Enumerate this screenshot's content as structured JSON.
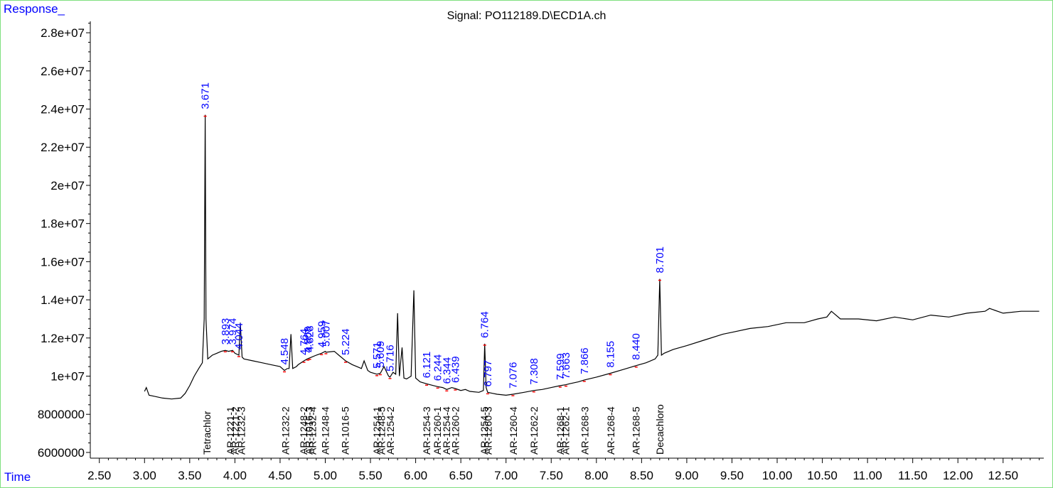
{
  "chart_data": {
    "type": "line",
    "title": "Signal: PO112189.D\\ECD1A.ch",
    "ylabel": "Response_",
    "xlabel": "Time",
    "xlim": [
      2.4,
      12.95
    ],
    "ylim": [
      5700000,
      28600000
    ],
    "xticks": [
      "2.50",
      "3.00",
      "3.50",
      "4.00",
      "4.50",
      "5.00",
      "5.50",
      "6.00",
      "6.50",
      "7.00",
      "7.50",
      "8.00",
      "8.50",
      "9.00",
      "9.50",
      "10.00",
      "10.50",
      "11.00",
      "11.50",
      "12.00",
      "12.50"
    ],
    "yticks": [
      "6000000",
      "8000000",
      "1e+07",
      "1.2e+07",
      "1.4e+07",
      "1.6e+07",
      "1.8e+07",
      "2e+07",
      "2.2e+07",
      "2.4e+07",
      "2.6e+07",
      "2.8e+07"
    ],
    "series": [
      {
        "x": [
          3.0,
          3.02,
          3.05,
          3.1,
          3.2,
          3.3,
          3.4,
          3.45,
          3.5,
          3.55,
          3.6,
          3.64,
          3.66,
          3.671,
          3.68,
          3.7,
          3.75,
          3.8,
          3.85,
          3.893,
          3.93,
          3.974,
          4.0,
          4.044,
          4.06,
          4.08,
          4.1,
          4.2,
          4.3,
          4.4,
          4.5,
          4.548,
          4.58,
          4.6,
          4.62,
          4.64,
          4.68,
          4.7,
          4.764,
          4.8,
          4.85,
          4.9,
          4.959,
          5.0,
          5.007,
          5.1,
          5.15,
          5.2,
          5.224,
          5.3,
          5.35,
          5.4,
          5.43,
          5.47,
          5.5,
          5.571,
          5.609,
          5.65,
          5.7,
          5.716,
          5.75,
          5.78,
          5.8,
          5.82,
          5.85,
          5.87,
          5.9,
          5.95,
          5.98,
          6.0,
          6.05,
          6.121,
          6.2,
          6.244,
          6.3,
          6.344,
          6.4,
          6.439,
          6.5,
          6.55,
          6.6,
          6.7,
          6.75,
          6.764,
          6.78,
          6.797,
          6.85,
          6.9,
          7.0,
          7.076,
          7.2,
          7.308,
          7.4,
          7.5,
          7.599,
          7.663,
          7.7,
          7.8,
          7.866,
          8.0,
          8.155,
          8.3,
          8.44,
          8.55,
          8.65,
          8.68,
          8.701,
          8.72,
          8.75,
          8.85,
          9.0,
          9.2,
          9.4,
          9.5,
          9.7,
          9.9,
          10.1,
          10.3,
          10.45,
          10.55,
          10.6,
          10.7,
          10.9,
          11.1,
          11.3,
          11.5,
          11.7,
          11.9,
          12.1,
          12.3,
          12.35,
          12.5,
          12.7,
          12.9
        ],
        "y": [
          9200000,
          9400000,
          9000000,
          8950000,
          8850000,
          8800000,
          8850000,
          9100000,
          9500000,
          10000000,
          10400000,
          10700000,
          13000000,
          23700000,
          13000000,
          10900000,
          11100000,
          11200000,
          11300000,
          11350000,
          11300000,
          11350000,
          11200000,
          11100000,
          12800000,
          11000000,
          10900000,
          10800000,
          10700000,
          10600000,
          10500000,
          10300000,
          10400000,
          10400000,
          12200000,
          10400000,
          10500000,
          10600000,
          10800000,
          10900000,
          11000000,
          11100000,
          11200000,
          11300000,
          11250000,
          11300000,
          11100000,
          10900000,
          10800000,
          10600000,
          10500000,
          10400000,
          10800000,
          10300000,
          10200000,
          10100000,
          10150000,
          10500000,
          10000000,
          9950000,
          10200000,
          10100000,
          13300000,
          10000000,
          11500000,
          9900000,
          9850000,
          10000000,
          14500000,
          9900000,
          9700000,
          9600000,
          9500000,
          9450000,
          9400000,
          9300000,
          9400000,
          9350000,
          9250000,
          9300000,
          9200000,
          9150000,
          9250000,
          11700000,
          9400000,
          9150000,
          9100000,
          9050000,
          9000000,
          9050000,
          9150000,
          9250000,
          9300000,
          9400000,
          9500000,
          9550000,
          9600000,
          9700000,
          9800000,
          9950000,
          10150000,
          10350000,
          10550000,
          10700000,
          10900000,
          11100000,
          15100000,
          11100000,
          11200000,
          11400000,
          11600000,
          11900000,
          12200000,
          12300000,
          12500000,
          12600000,
          12800000,
          12800000,
          13000000,
          13100000,
          13400000,
          13000000,
          13000000,
          12900000,
          13100000,
          12950000,
          13200000,
          13100000,
          13300000,
          13400000,
          13550000,
          13300000,
          13400000,
          13400000
        ]
      }
    ],
    "peak_labels": [
      "3.671",
      "3.893",
      "3.974",
      "4.044",
      "4.548",
      "4.764",
      "4.808",
      "4.828",
      "4.959",
      "5.007",
      "5.224",
      "5.571",
      "5.609",
      "5.716",
      "6.121",
      "6.244",
      "6.344",
      "6.439",
      "6.764",
      "6.797",
      "7.076",
      "7.308",
      "7.599",
      "7.663",
      "7.866",
      "8.155",
      "8.440",
      "8.701"
    ],
    "compound_labels": [
      "Tetrachlor",
      "AR-1221-1",
      "AR-1221-2",
      "AR-1232-3",
      "AR-1232-2",
      "AR-1248-2",
      "AR-1016-3",
      "AR-1232-4",
      "AR-1248-4",
      "AR-1016-5",
      "AR-1254-1",
      "AR-1248-5",
      "AR-1254-2",
      "AR-1254-3",
      "AR-1260-1",
      "AR-1254-4",
      "AR-1260-2",
      "AR-1254-5",
      "AR-1260-3",
      "AR-1260-4",
      "AR-1262-2",
      "AR-1268-1",
      "AR-1262-1",
      "AR-1268-3",
      "AR-1268-4",
      "AR-1268-5",
      "Decachloro"
    ]
  },
  "colors": {
    "trace": "#000000",
    "peak_label": "#0000ff",
    "baseline_marker": "#ff0000",
    "frame": "#7fe07f"
  }
}
